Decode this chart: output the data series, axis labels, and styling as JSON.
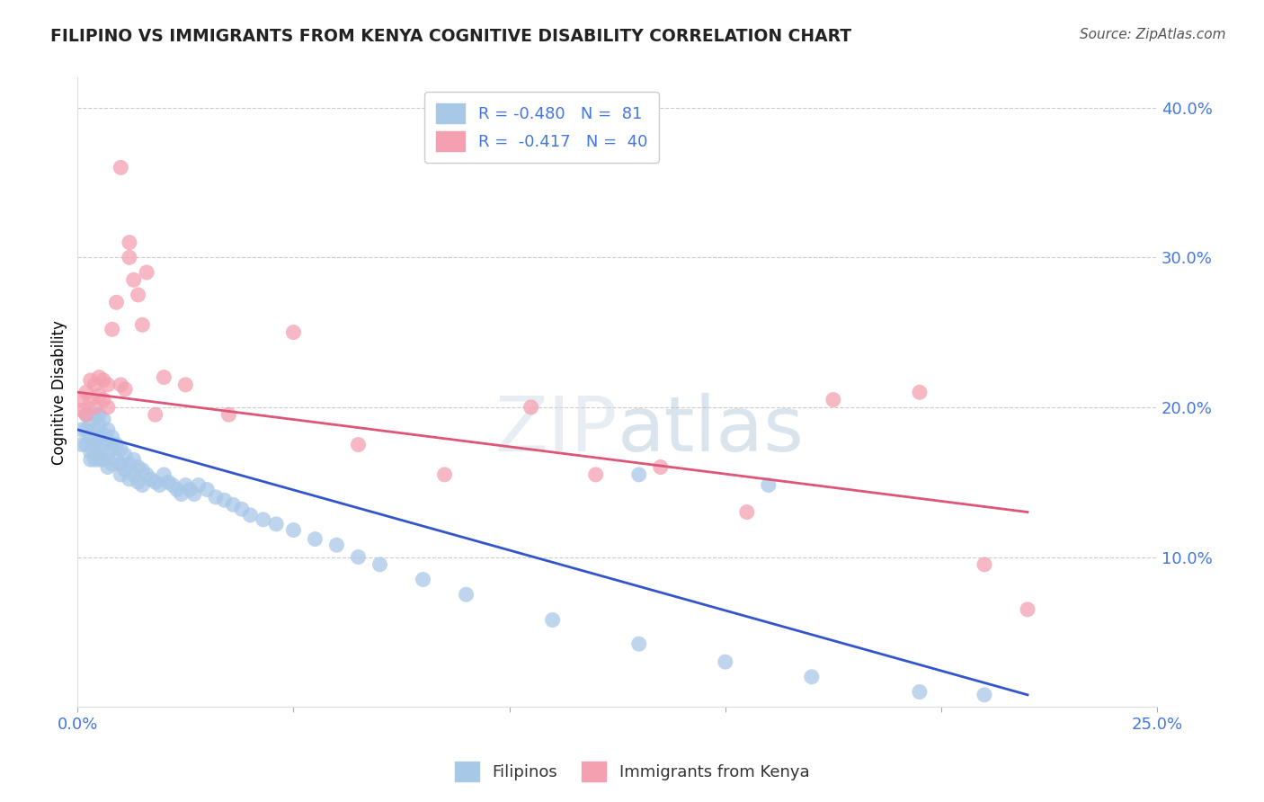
{
  "title": "FILIPINO VS IMMIGRANTS FROM KENYA COGNITIVE DISABILITY CORRELATION CHART",
  "source": "Source: ZipAtlas.com",
  "ylabel": "Cognitive Disability",
  "xlim": [
    0.0,
    0.25
  ],
  "ylim": [
    0.0,
    0.42
  ],
  "blue_R": -0.48,
  "blue_N": 81,
  "pink_R": -0.417,
  "pink_N": 40,
  "blue_color": "#a8c8e8",
  "pink_color": "#f4a0b0",
  "blue_line_color": "#3355cc",
  "pink_line_color": "#dd5577",
  "title_color": "#222222",
  "axis_label_color": "#4477dd",
  "watermark_color": "#c8d8e8",
  "grid_color": "#cccccc",
  "blue_points_x": [
    0.001,
    0.001,
    0.002,
    0.002,
    0.002,
    0.003,
    0.003,
    0.003,
    0.003,
    0.004,
    0.004,
    0.004,
    0.004,
    0.004,
    0.005,
    0.005,
    0.005,
    0.005,
    0.005,
    0.006,
    0.006,
    0.006,
    0.006,
    0.007,
    0.007,
    0.007,
    0.007,
    0.008,
    0.008,
    0.008,
    0.009,
    0.009,
    0.01,
    0.01,
    0.01,
    0.011,
    0.011,
    0.012,
    0.012,
    0.013,
    0.013,
    0.014,
    0.014,
    0.015,
    0.015,
    0.016,
    0.017,
    0.018,
    0.019,
    0.02,
    0.021,
    0.022,
    0.023,
    0.024,
    0.025,
    0.026,
    0.027,
    0.028,
    0.03,
    0.032,
    0.034,
    0.036,
    0.038,
    0.04,
    0.043,
    0.046,
    0.05,
    0.055,
    0.06,
    0.065,
    0.07,
    0.08,
    0.09,
    0.11,
    0.13,
    0.15,
    0.17,
    0.195,
    0.21,
    0.13,
    0.16
  ],
  "blue_points_y": [
    0.185,
    0.175,
    0.195,
    0.185,
    0.175,
    0.19,
    0.18,
    0.17,
    0.165,
    0.195,
    0.185,
    0.178,
    0.17,
    0.165,
    0.195,
    0.188,
    0.18,
    0.172,
    0.165,
    0.192,
    0.182,
    0.175,
    0.165,
    0.185,
    0.178,
    0.168,
    0.16,
    0.18,
    0.172,
    0.162,
    0.175,
    0.165,
    0.172,
    0.162,
    0.155,
    0.168,
    0.158,
    0.162,
    0.152,
    0.165,
    0.155,
    0.16,
    0.15,
    0.158,
    0.148,
    0.155,
    0.152,
    0.15,
    0.148,
    0.155,
    0.15,
    0.148,
    0.145,
    0.142,
    0.148,
    0.145,
    0.142,
    0.148,
    0.145,
    0.14,
    0.138,
    0.135,
    0.132,
    0.128,
    0.125,
    0.122,
    0.118,
    0.112,
    0.108,
    0.1,
    0.095,
    0.085,
    0.075,
    0.058,
    0.042,
    0.03,
    0.02,
    0.01,
    0.008,
    0.155,
    0.148
  ],
  "pink_points_x": [
    0.001,
    0.001,
    0.002,
    0.002,
    0.003,
    0.003,
    0.004,
    0.004,
    0.005,
    0.005,
    0.006,
    0.006,
    0.007,
    0.007,
    0.008,
    0.009,
    0.01,
    0.011,
    0.012,
    0.013,
    0.015,
    0.018,
    0.025,
    0.035,
    0.05,
    0.065,
    0.085,
    0.105,
    0.12,
    0.135,
    0.155,
    0.175,
    0.195,
    0.21,
    0.22,
    0.01,
    0.012,
    0.014,
    0.016,
    0.02
  ],
  "pink_points_y": [
    0.205,
    0.198,
    0.21,
    0.195,
    0.218,
    0.205,
    0.215,
    0.2,
    0.22,
    0.208,
    0.218,
    0.205,
    0.215,
    0.2,
    0.252,
    0.27,
    0.215,
    0.212,
    0.3,
    0.285,
    0.255,
    0.195,
    0.215,
    0.195,
    0.25,
    0.175,
    0.155,
    0.2,
    0.155,
    0.16,
    0.13,
    0.205,
    0.21,
    0.095,
    0.065,
    0.36,
    0.31,
    0.275,
    0.29,
    0.22
  ]
}
